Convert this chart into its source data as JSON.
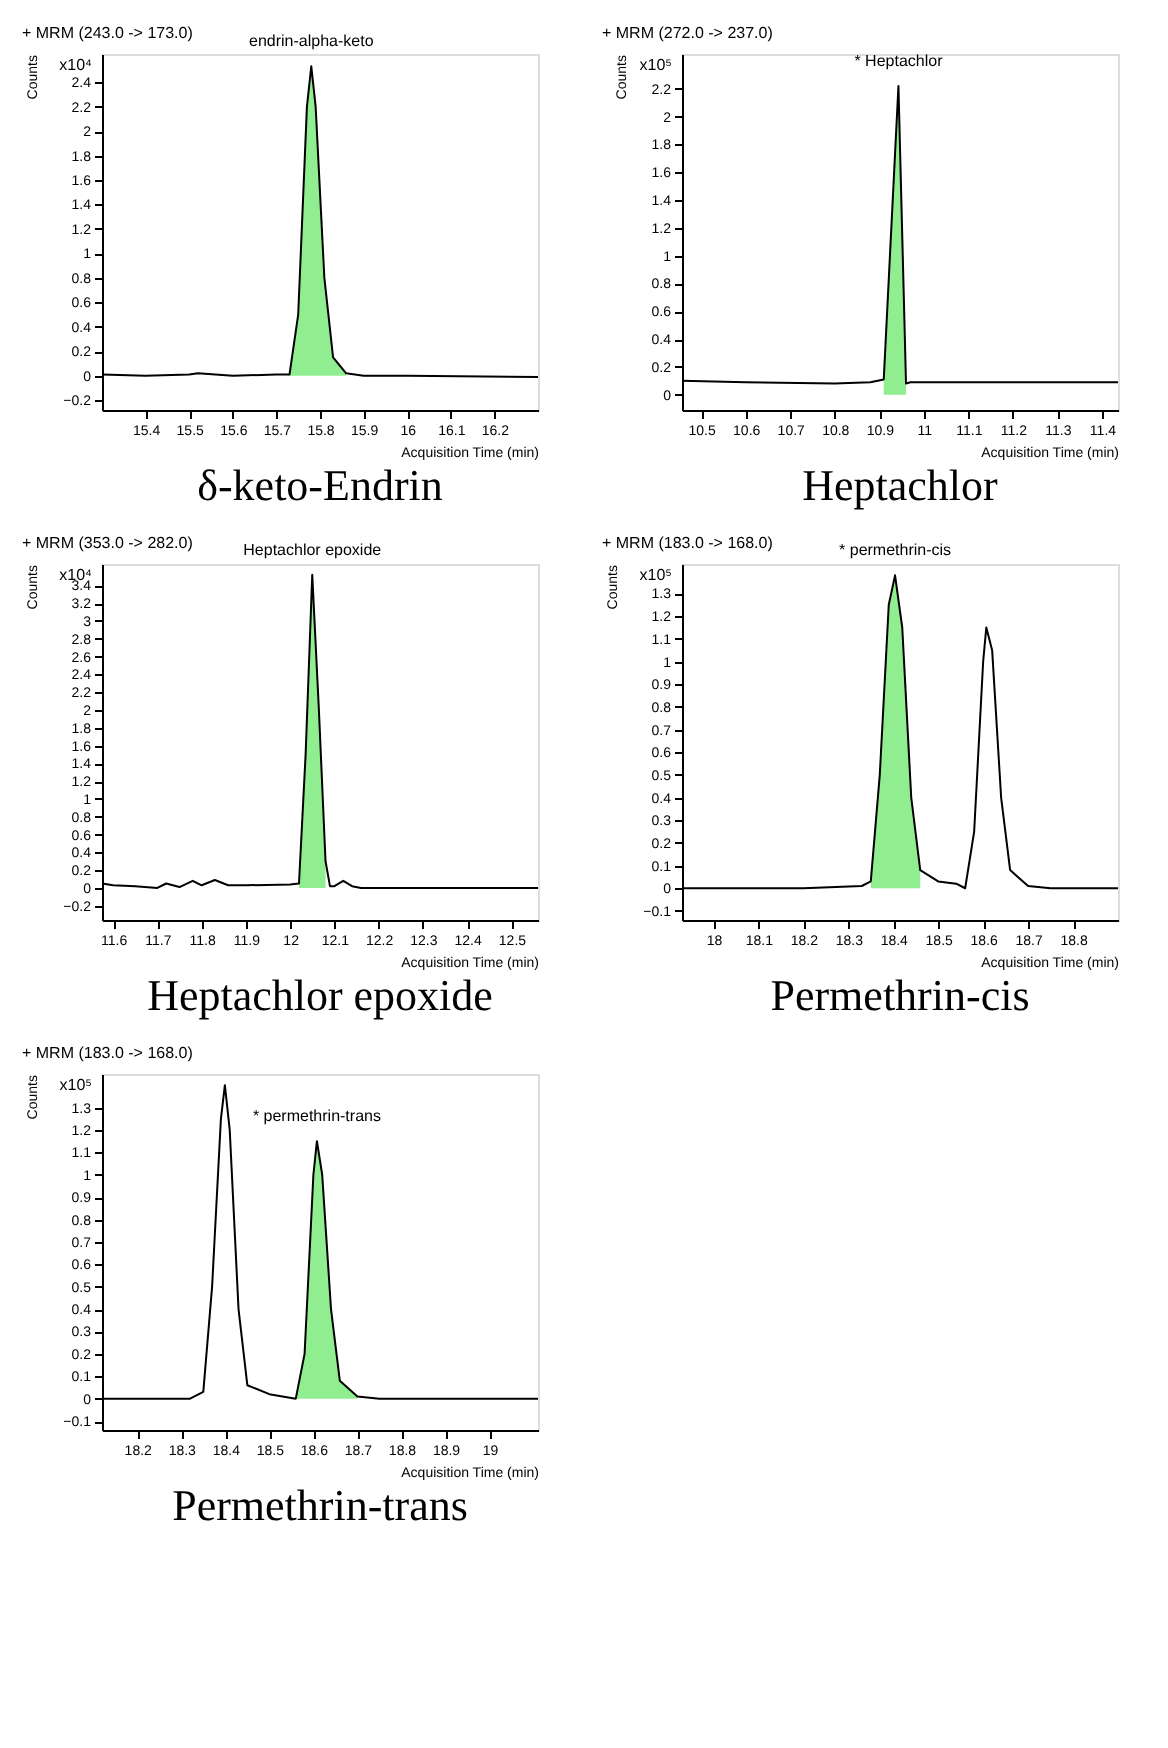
{
  "chart_data": [
    {
      "type": "line",
      "title": "δ-keto-Endrin",
      "subtitle": "+ MRM (243.0 -> 173.0)",
      "xlabel": "Acquisition Time (min)",
      "ylabel": "Counts",
      "annotations": [
        "x10⁴",
        {
          "text": "endrin-alpha-keto",
          "x": 15.78,
          "y": 2.53
        }
      ],
      "xlim": [
        15.3,
        16.3
      ],
      "xticks": [
        15.4,
        15.5,
        15.6,
        15.7,
        15.8,
        15.9,
        16,
        16.1,
        16.2
      ],
      "ylim": [
        -0.28,
        2.63
      ],
      "yticks": [
        -0.2,
        0,
        0.2,
        0.4,
        0.6,
        0.8,
        1,
        1.2,
        1.4,
        1.6,
        1.8,
        2,
        2.2,
        2.4
      ],
      "grid": false,
      "marker": "none",
      "line_style": "solid",
      "series": [
        {
          "type": "area",
          "color": "#90ee90",
          "x": [
            15.73,
            15.75,
            15.77,
            15.78,
            15.79,
            15.81,
            15.83,
            15.86
          ],
          "values": [
            0.01,
            0.5,
            2.2,
            2.53,
            2.2,
            0.8,
            0.15,
            0.02
          ]
        },
        {
          "type": "line",
          "color": "#000000",
          "x": [
            15.3,
            15.4,
            15.5,
            15.52,
            15.6,
            15.7,
            15.73,
            15.75,
            15.77,
            15.78,
            15.79,
            15.81,
            15.83,
            15.86,
            15.9,
            16.0,
            16.3
          ],
          "values": [
            0.01,
            0.0,
            0.01,
            0.02,
            0.0,
            0.01,
            0.01,
            0.5,
            2.2,
            2.53,
            2.2,
            0.8,
            0.15,
            0.02,
            0.0,
            0.0,
            -0.01
          ]
        }
      ]
    },
    {
      "type": "line",
      "title": "Heptachlor",
      "subtitle": "+ MRM (272.0 -> 237.0)",
      "xlabel": "Acquisition Time (min)",
      "ylabel": "Counts",
      "annotations": [
        "x10⁵",
        {
          "text": "* Heptachlor",
          "x": 10.943,
          "y": 2.22
        }
      ],
      "xlim": [
        10.457,
        11.436
      ],
      "xticks": [
        10.5,
        10.6,
        10.7,
        10.8,
        10.9,
        11,
        11.1,
        11.2,
        11.3,
        11.4
      ],
      "ylim": [
        -0.11,
        2.45
      ],
      "yticks": [
        0,
        0.2,
        0.4,
        0.6,
        0.8,
        1,
        1.2,
        1.4,
        1.6,
        1.8,
        2,
        2.2
      ],
      "grid": false,
      "marker": "none",
      "line_style": "solid",
      "series": [
        {
          "type": "area",
          "color": "#90ee90",
          "x": [
            10.91,
            10.943,
            10.96
          ],
          "values": [
            0.11,
            2.22,
            0.08
          ]
        },
        {
          "type": "line",
          "color": "#000000",
          "x": [
            10.457,
            10.6,
            10.8,
            10.88,
            10.91,
            10.943,
            10.96,
            10.97,
            11.436
          ],
          "values": [
            0.1,
            0.09,
            0.08,
            0.09,
            0.11,
            2.22,
            0.08,
            0.09,
            0.09
          ]
        }
      ]
    },
    {
      "type": "line",
      "title": "Heptachlor  epoxide",
      "subtitle": "+ MRM (353.0 -> 282.0)",
      "xlabel": "Acquisition Time (min)",
      "ylabel": "Counts",
      "annotations": [
        "x10⁴",
        {
          "text": "Heptachlor epoxide",
          "x": 12.05,
          "y": 3.52
        }
      ],
      "xlim": [
        11.575,
        12.56
      ],
      "xticks": [
        11.6,
        11.7,
        11.8,
        11.9,
        12,
        12.1,
        12.2,
        12.3,
        12.4,
        12.5
      ],
      "ylim": [
        -0.36,
        3.64
      ],
      "yticks": [
        -0.2,
        0,
        0.2,
        0.4,
        0.6,
        0.8,
        1,
        1.2,
        1.4,
        1.6,
        1.8,
        2,
        2.2,
        2.4,
        2.6,
        2.8,
        3,
        3.2,
        3.4
      ],
      "grid": false,
      "marker": "none",
      "line_style": "solid",
      "series": [
        {
          "type": "area",
          "color": "#90ee90",
          "x": [
            12.02,
            12.035,
            12.05,
            12.065,
            12.08
          ],
          "values": [
            0.05,
            1.5,
            3.52,
            2.0,
            0.3
          ]
        },
        {
          "type": "line",
          "color": "#000000",
          "x": [
            11.575,
            11.6,
            11.65,
            11.7,
            11.72,
            11.75,
            11.78,
            11.8,
            11.83,
            11.86,
            11.9,
            12.0,
            12.02,
            12.035,
            12.05,
            12.065,
            12.08,
            12.09,
            12.1,
            12.12,
            12.14,
            12.16,
            12.56
          ],
          "values": [
            0.05,
            0.03,
            0.02,
            0.0,
            0.05,
            0.01,
            0.08,
            0.03,
            0.09,
            0.03,
            0.03,
            0.04,
            0.05,
            1.5,
            3.52,
            2.0,
            0.3,
            0.02,
            0.02,
            0.08,
            0.02,
            0.0,
            0.0
          ]
        }
      ]
    },
    {
      "type": "line",
      "title": "Permethrin-cis",
      "subtitle": "+ MRM (183.0 -> 168.0)",
      "xlabel": "Acquisition Time (min)",
      "ylabel": "Counts",
      "annotations": [
        "x10⁵",
        {
          "text": "* permethrin-cis",
          "x": 18.404,
          "y": 1.38
        }
      ],
      "xlim": [
        17.93,
        18.9
      ],
      "xticks": [
        18,
        18.1,
        18.2,
        18.3,
        18.4,
        18.5,
        18.6,
        18.7,
        18.8
      ],
      "ylim": [
        -0.14,
        1.43
      ],
      "yticks": [
        -0.1,
        0,
        0.1,
        0.2,
        0.3,
        0.4,
        0.5,
        0.6,
        0.7,
        0.8,
        0.9,
        1,
        1.1,
        1.2,
        1.3
      ],
      "grid": false,
      "marker": "none",
      "line_style": "solid",
      "series": [
        {
          "type": "area",
          "color": "#90ee90",
          "x": [
            18.35,
            18.37,
            18.39,
            18.404,
            18.42,
            18.44,
            18.46
          ],
          "values": [
            0.03,
            0.5,
            1.25,
            1.38,
            1.15,
            0.4,
            0.08
          ]
        },
        {
          "type": "line",
          "color": "#000000",
          "x": [
            17.93,
            18.2,
            18.33,
            18.35,
            18.37,
            18.39,
            18.404,
            18.42,
            18.44,
            18.46,
            18.5,
            18.54,
            18.56,
            18.58,
            18.6,
            18.607,
            18.62,
            18.64,
            18.66,
            18.7,
            18.75,
            18.9
          ],
          "values": [
            0.0,
            0.0,
            0.01,
            0.03,
            0.5,
            1.25,
            1.38,
            1.15,
            0.4,
            0.08,
            0.03,
            0.02,
            0.0,
            0.25,
            1.0,
            1.15,
            1.05,
            0.4,
            0.08,
            0.01,
            0.0,
            0.0
          ]
        }
      ]
    },
    {
      "type": "line",
      "title": "Permethrin-trans",
      "subtitle": "+ MRM (183.0 -> 168.0)",
      "xlabel": "Acquisition Time (min)",
      "ylabel": "Counts",
      "annotations": [
        "x10⁵",
        {
          "text": "* permethrin-trans",
          "x": 18.608,
          "y": 1.15
        }
      ],
      "xlim": [
        18.12,
        19.11
      ],
      "xticks": [
        18.2,
        18.3,
        18.4,
        18.5,
        18.6,
        18.7,
        18.8,
        18.9,
        19
      ],
      "ylim": [
        -0.14,
        1.45
      ],
      "yticks": [
        -0.1,
        0,
        0.1,
        0.2,
        0.3,
        0.4,
        0.5,
        0.6,
        0.7,
        0.8,
        0.9,
        1,
        1.1,
        1.2,
        1.3
      ],
      "grid": false,
      "marker": "none",
      "line_style": "solid",
      "series": [
        {
          "type": "area",
          "color": "#90ee90",
          "x": [
            18.56,
            18.58,
            18.6,
            18.608,
            18.62,
            18.64,
            18.66,
            18.7
          ],
          "values": [
            0.0,
            0.2,
            1.0,
            1.15,
            1.0,
            0.4,
            0.08,
            0.01
          ]
        },
        {
          "type": "line",
          "color": "#000000",
          "x": [
            18.12,
            18.32,
            18.35,
            18.37,
            18.39,
            18.399,
            18.41,
            18.43,
            18.45,
            18.5,
            18.53,
            18.56,
            18.58,
            18.6,
            18.608,
            18.62,
            18.64,
            18.66,
            18.7,
            18.75,
            19.11
          ],
          "values": [
            0.0,
            0.0,
            0.03,
            0.5,
            1.25,
            1.4,
            1.2,
            0.4,
            0.06,
            0.02,
            0.01,
            0.0,
            0.2,
            1.0,
            1.15,
            1.0,
            0.4,
            0.08,
            0.01,
            0.0,
            0.0
          ]
        }
      ]
    }
  ]
}
